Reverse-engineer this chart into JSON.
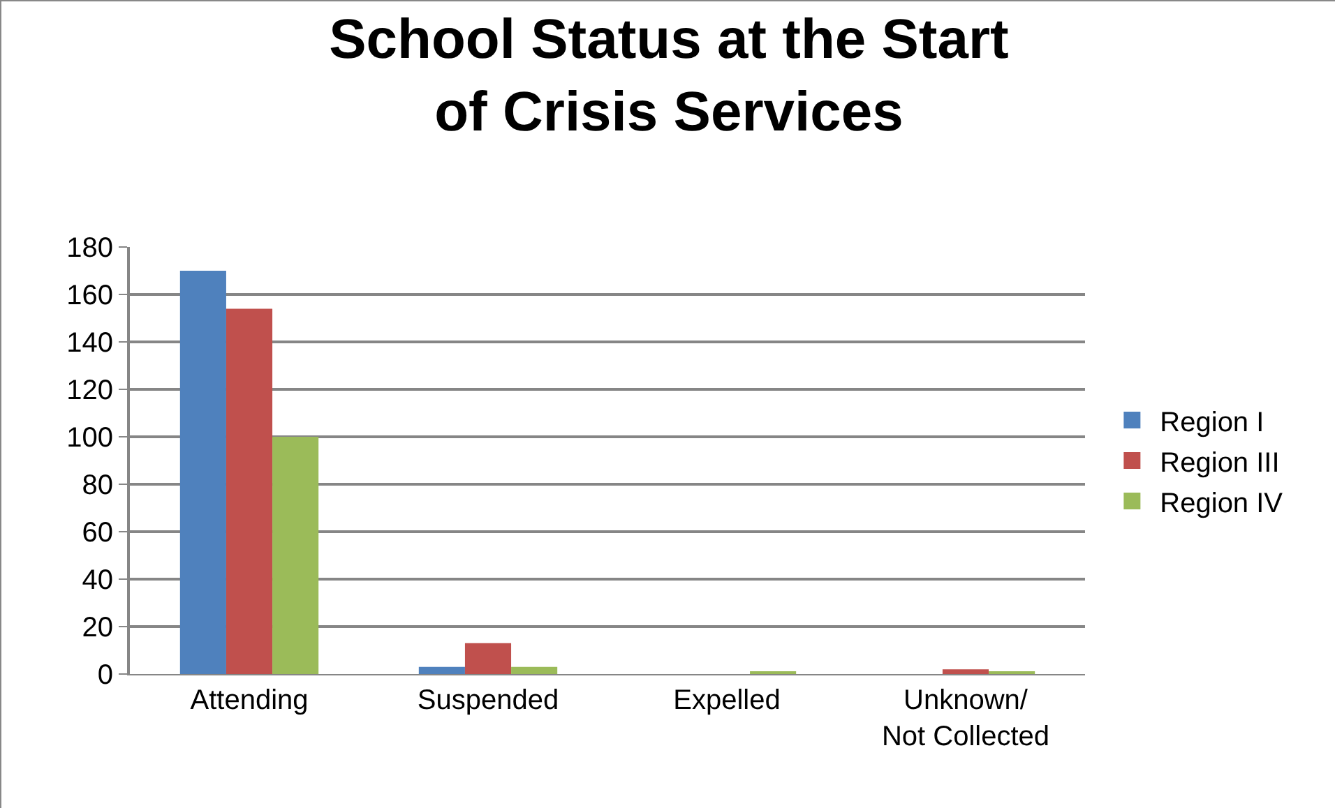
{
  "chart_data": {
    "type": "bar",
    "title": "School Status at the Start of Crisis Services",
    "categories": [
      "Attending",
      "Suspended",
      "Expelled",
      "Unknown/Not Collected"
    ],
    "series": [
      {
        "name": "Region I",
        "color": "#4f81bd",
        "values": [
          170,
          3,
          0,
          0
        ]
      },
      {
        "name": "Region III",
        "color": "#c0504d",
        "values": [
          154,
          13,
          0,
          2
        ]
      },
      {
        "name": "Region IV",
        "color": "#9bbb59",
        "values": [
          100,
          3,
          1,
          1
        ]
      }
    ],
    "ylim": [
      0,
      180
    ],
    "yticks": [
      0,
      20,
      40,
      60,
      80,
      100,
      120,
      140,
      160,
      180
    ],
    "grid": "y",
    "legend": "right"
  }
}
